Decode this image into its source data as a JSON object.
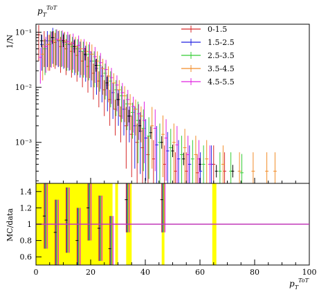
{
  "chart_data": {
    "type": "scatter",
    "top_panel": {
      "ylabel": "1/N",
      "y_scale": "log",
      "ylim": [
        0.00018,
        0.14
      ],
      "y_ticks": [
        {
          "value": 0.001,
          "label": "10⁻³"
        },
        {
          "value": 0.01,
          "label": "10⁻²"
        },
        {
          "value": 0.1,
          "label": "10⁻¹"
        }
      ],
      "title": "p_T^{ToT}",
      "legend": {
        "placement": "top-right"
      }
    },
    "ratio_panel": {
      "ylabel": "MC/data",
      "ylim": [
        0.5,
        1.5
      ],
      "y_ticks": [
        {
          "value": 0.6,
          "label": "0.6"
        },
        {
          "value": 0.8,
          "label": "0.8"
        },
        {
          "value": 1.0,
          "label": "1"
        },
        {
          "value": 1.2,
          "label": "1.2"
        },
        {
          "value": 1.4,
          "label": "1.4"
        }
      ],
      "reference_value": 1.0
    },
    "xlabel": "p_T^{ToT}",
    "xlim": [
      0,
      100
    ],
    "x_ticks": [
      {
        "value": 0,
        "label": "0"
      },
      {
        "value": 20,
        "label": "20"
      },
      {
        "value": 40,
        "label": "40"
      },
      {
        "value": 60,
        "label": "60"
      },
      {
        "value": 80,
        "label": "80"
      },
      {
        "value": 100,
        "label": "100"
      }
    ],
    "series": [
      {
        "name": "0-1.5",
        "color": "#d62728",
        "points": [
          [
            1,
            0.09
          ],
          [
            3,
            0.07
          ],
          [
            5,
            0.06
          ],
          [
            7,
            0.065
          ],
          [
            9,
            0.055
          ],
          [
            11,
            0.05
          ],
          [
            13,
            0.045
          ],
          [
            15,
            0.038
          ],
          [
            17,
            0.03
          ],
          [
            19,
            0.024
          ],
          [
            21,
            0.018
          ],
          [
            23,
            0.013
          ],
          [
            25,
            0.009
          ],
          [
            27,
            0.006
          ],
          [
            29,
            0.004
          ],
          [
            31,
            0.003
          ],
          [
            33,
            0.002
          ],
          [
            35,
            0.0014
          ],
          [
            37,
            0.001
          ],
          [
            39,
            0.0008
          ],
          [
            41,
            0.0006
          ],
          [
            43,
            0.0005
          ],
          [
            47,
            0.0004
          ],
          [
            51,
            0.0003
          ],
          [
            55,
            0.0003
          ],
          [
            59,
            0.00028
          ],
          [
            65,
            0.0004
          ],
          [
            69,
            0.0003
          ]
        ]
      },
      {
        "name": "1.5-2.5",
        "color": "#1f1fe0",
        "points": [
          [
            2,
            0.06
          ],
          [
            4,
            0.07
          ],
          [
            6,
            0.08
          ],
          [
            8,
            0.07
          ],
          [
            10,
            0.065
          ],
          [
            12,
            0.06
          ],
          [
            14,
            0.05
          ],
          [
            16,
            0.045
          ],
          [
            18,
            0.038
          ],
          [
            20,
            0.03
          ],
          [
            22,
            0.022
          ],
          [
            24,
            0.016
          ],
          [
            26,
            0.011
          ],
          [
            28,
            0.008
          ],
          [
            30,
            0.006
          ],
          [
            32,
            0.004
          ],
          [
            34,
            0.003
          ],
          [
            36,
            0.002
          ],
          [
            38,
            0.0016
          ],
          [
            40,
            0.0012
          ],
          [
            44,
            0.0009
          ],
          [
            48,
            0.0007
          ],
          [
            52,
            0.0005
          ],
          [
            56,
            0.0004
          ],
          [
            60,
            0.0003
          ],
          [
            64,
            0.0004
          ]
        ]
      },
      {
        "name": "2.5-3.5",
        "color": "#33cc33",
        "points": [
          [
            3,
            0.05
          ],
          [
            5,
            0.07
          ],
          [
            7,
            0.075
          ],
          [
            9,
            0.07
          ],
          [
            11,
            0.06
          ],
          [
            13,
            0.055
          ],
          [
            15,
            0.05
          ],
          [
            17,
            0.045
          ],
          [
            19,
            0.04
          ],
          [
            21,
            0.03
          ],
          [
            23,
            0.025
          ],
          [
            25,
            0.018
          ],
          [
            27,
            0.013
          ],
          [
            29,
            0.009
          ],
          [
            31,
            0.007
          ],
          [
            33,
            0.005
          ],
          [
            35,
            0.0035
          ],
          [
            37,
            0.0025
          ],
          [
            39,
            0.0018
          ],
          [
            41,
            0.0013
          ],
          [
            45,
            0.001
          ],
          [
            49,
            0.0008
          ],
          [
            53,
            0.0006
          ],
          [
            57,
            0.0005
          ],
          [
            61,
            0.0004
          ],
          [
            67,
            0.0003
          ],
          [
            71,
            0.0003
          ],
          [
            75,
            0.00028
          ]
        ]
      },
      {
        "name": "3.5-4.5",
        "color": "#f28c28",
        "points": [
          [
            2,
            0.04
          ],
          [
            4,
            0.06
          ],
          [
            6,
            0.07
          ],
          [
            8,
            0.072
          ],
          [
            10,
            0.068
          ],
          [
            12,
            0.062
          ],
          [
            14,
            0.055
          ],
          [
            16,
            0.05
          ],
          [
            18,
            0.045
          ],
          [
            20,
            0.04
          ],
          [
            22,
            0.03
          ],
          [
            24,
            0.022
          ],
          [
            26,
            0.016
          ],
          [
            28,
            0.012
          ],
          [
            30,
            0.009
          ],
          [
            32,
            0.007
          ],
          [
            34,
            0.005
          ],
          [
            36,
            0.004
          ],
          [
            38,
            0.003
          ],
          [
            42,
            0.002
          ],
          [
            46,
            0.0014
          ],
          [
            50,
            0.001
          ],
          [
            54,
            0.0008
          ],
          [
            58,
            0.0006
          ],
          [
            62,
            0.0005
          ],
          [
            68,
            0.0004
          ],
          [
            74,
            0.0003
          ],
          [
            79,
            0.0003
          ],
          [
            84,
            0.0003
          ],
          [
            87,
            0.0003
          ]
        ]
      },
      {
        "name": "4.5-5.5",
        "color": "#e020e0",
        "points": [
          [
            1,
            0.035
          ],
          [
            3,
            0.055
          ],
          [
            5,
            0.068
          ],
          [
            7,
            0.075
          ],
          [
            9,
            0.072
          ],
          [
            11,
            0.068
          ],
          [
            13,
            0.063
          ],
          [
            15,
            0.058
          ],
          [
            17,
            0.05
          ],
          [
            19,
            0.044
          ],
          [
            21,
            0.036
          ],
          [
            23,
            0.028
          ],
          [
            25,
            0.021
          ],
          [
            27,
            0.015
          ],
          [
            29,
            0.011
          ],
          [
            31,
            0.008
          ],
          [
            33,
            0.006
          ],
          [
            35,
            0.0045
          ],
          [
            37,
            0.0033
          ],
          [
            39,
            0.0025
          ],
          [
            43,
            0.0018
          ],
          [
            47,
            0.0012
          ],
          [
            51,
            0.0009
          ],
          [
            55,
            0.0006
          ],
          [
            59,
            0.0005
          ],
          [
            63,
            0.0004
          ]
        ]
      }
    ],
    "data_points": [
      [
        2,
        0.07
      ],
      [
        6,
        0.08
      ],
      [
        10,
        0.07
      ],
      [
        14,
        0.055
      ],
      [
        18,
        0.04
      ],
      [
        22,
        0.025
      ],
      [
        26,
        0.012
      ],
      [
        30,
        0.006
      ],
      [
        34,
        0.003
      ],
      [
        38,
        0.002
      ],
      [
        42,
        0.0015
      ],
      [
        46,
        0.001
      ],
      [
        50,
        0.0007
      ],
      [
        54,
        0.0005
      ],
      [
        60,
        0.0004
      ],
      [
        66,
        0.0003
      ],
      [
        72,
        0.0003
      ]
    ],
    "ratio_points": [
      [
        3,
        1.1
      ],
      [
        7,
        0.9
      ],
      [
        11,
        1.05
      ],
      [
        15,
        0.8
      ],
      [
        19,
        1.2
      ],
      [
        23,
        0.95
      ],
      [
        27,
        0.7
      ],
      [
        33,
        1.3
      ],
      [
        46,
        1.3
      ]
    ],
    "ratio_bands": [
      [
        0,
        28
      ],
      [
        29,
        30
      ],
      [
        33,
        35
      ],
      [
        46,
        47
      ],
      [
        64.5,
        66
      ]
    ]
  }
}
